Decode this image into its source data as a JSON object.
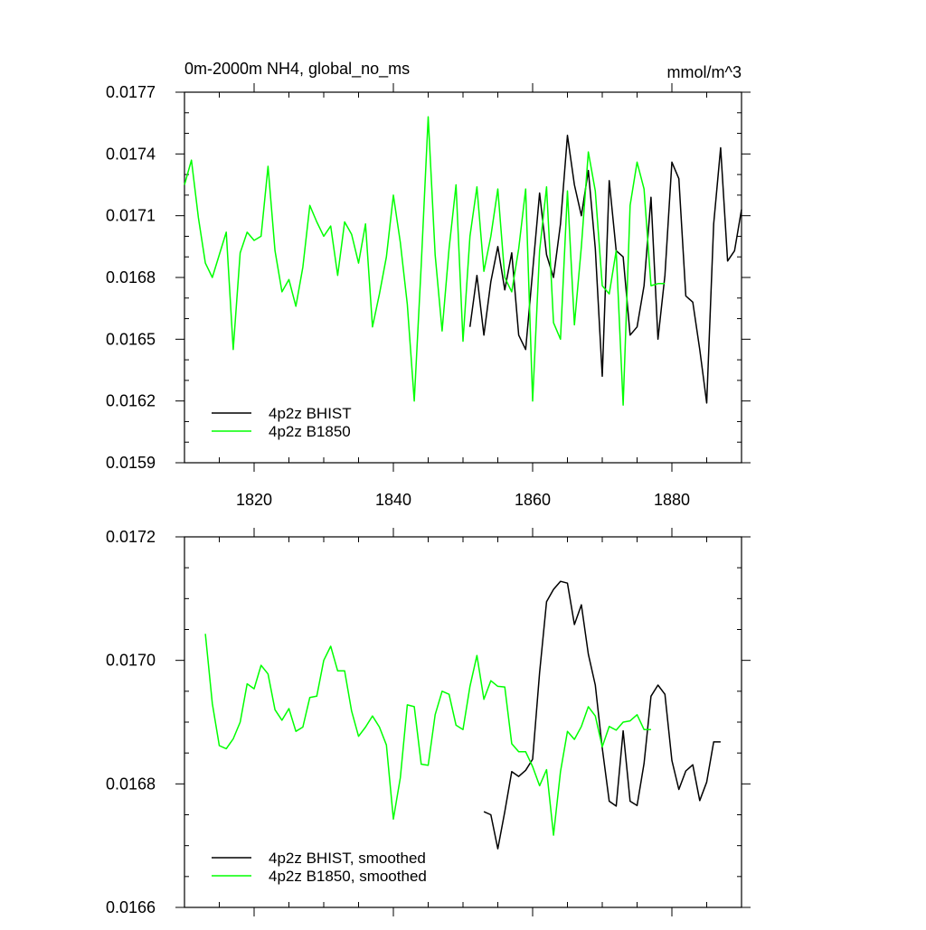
{
  "chart_data": [
    {
      "type": "line",
      "title": "0m-2000m NH4, global_no_ms",
      "units": "mmol/m^3",
      "xlim": [
        1810,
        1890
      ],
      "ylim": [
        0.0159,
        0.0177
      ],
      "xticks": [
        1820,
        1840,
        1860,
        1880
      ],
      "yticks": [
        0.0159,
        0.0162,
        0.0165,
        0.0168,
        0.0171,
        0.0174,
        0.0177
      ],
      "ytick_labels": [
        "0.0159",
        "0.0162",
        "0.0165",
        "0.0168",
        "0.0171",
        "0.0174",
        "0.0177"
      ],
      "legend": "bottom-left",
      "series": [
        {
          "name": "4p2z BHIST",
          "color": "#000000",
          "x": [
            1851,
            1852,
            1853,
            1854,
            1855,
            1856,
            1857,
            1858,
            1859,
            1860,
            1861,
            1862,
            1863,
            1864,
            1865,
            1866,
            1867,
            1868,
            1869,
            1870,
            1871,
            1872,
            1873,
            1874,
            1875,
            1876,
            1877,
            1878,
            1879,
            1880,
            1881,
            1882,
            1883,
            1884,
            1885,
            1886,
            1887,
            1888,
            1889,
            1890
          ],
          "y": [
            0.01656,
            0.01681,
            0.01652,
            0.01678,
            0.01695,
            0.01674,
            0.01692,
            0.01652,
            0.01645,
            0.01683,
            0.01721,
            0.01691,
            0.0168,
            0.01706,
            0.01749,
            0.01725,
            0.0171,
            0.01732,
            0.01694,
            0.01632,
            0.01727,
            0.01693,
            0.0169,
            0.01652,
            0.01656,
            0.01676,
            0.01719,
            0.0165,
            0.01681,
            0.01736,
            0.01728,
            0.01671,
            0.01668,
            0.01645,
            0.01619,
            0.01706,
            0.01743,
            0.01688,
            0.01693,
            0.01713
          ]
        },
        {
          "name": "4p2z B1850",
          "color": "#00ff00",
          "x": [
            1810,
            1811,
            1812,
            1813,
            1814,
            1815,
            1816,
            1817,
            1818,
            1819,
            1820,
            1821,
            1822,
            1823,
            1824,
            1825,
            1826,
            1827,
            1828,
            1829,
            1830,
            1831,
            1832,
            1833,
            1834,
            1835,
            1836,
            1837,
            1838,
            1839,
            1840,
            1841,
            1842,
            1843,
            1844,
            1845,
            1846,
            1847,
            1848,
            1849,
            1850,
            1851,
            1852,
            1853,
            1854,
            1855,
            1856,
            1857,
            1858,
            1859,
            1860,
            1861,
            1862,
            1863,
            1864,
            1865,
            1866,
            1867,
            1868,
            1869,
            1870,
            1871,
            1872,
            1873,
            1874,
            1875,
            1876,
            1877,
            1878,
            1879
          ],
          "y": [
            0.01725,
            0.01737,
            0.01709,
            0.01687,
            0.0168,
            0.01691,
            0.01702,
            0.01645,
            0.01692,
            0.01702,
            0.01698,
            0.017,
            0.01734,
            0.01693,
            0.01673,
            0.01679,
            0.01666,
            0.01685,
            0.01715,
            0.01707,
            0.017,
            0.01705,
            0.01681,
            0.01707,
            0.01701,
            0.01687,
            0.01706,
            0.01656,
            0.01672,
            0.0169,
            0.0172,
            0.01697,
            0.01667,
            0.0162,
            0.01686,
            0.01758,
            0.01691,
            0.01654,
            0.01694,
            0.01725,
            0.01649,
            0.017,
            0.01724,
            0.01683,
            0.017,
            0.01723,
            0.0168,
            0.01673,
            0.01694,
            0.01723,
            0.0162,
            0.01693,
            0.01724,
            0.01658,
            0.0165,
            0.01722,
            0.01657,
            0.01695,
            0.01741,
            0.01722,
            0.01676,
            0.01672,
            0.01693,
            0.01618,
            0.01715,
            0.01736,
            0.01723,
            0.01676,
            0.01677,
            0.01677
          ]
        }
      ]
    },
    {
      "type": "line",
      "xlim": [
        1810,
        1890
      ],
      "ylim": [
        0.0166,
        0.0172
      ],
      "xticks": [
        1820,
        1840,
        1860,
        1880
      ],
      "yticks": [
        0.0166,
        0.0168,
        0.017,
        0.0172
      ],
      "ytick_labels": [
        "0.0166",
        "0.0168",
        "0.0170",
        "0.0172"
      ],
      "legend": "bottom-left",
      "series": [
        {
          "name": "4p2z BHIST, smoothed",
          "color": "#000000",
          "x": [
            1853,
            1854,
            1855,
            1856,
            1857,
            1858,
            1859,
            1860,
            1861,
            1862,
            1863,
            1864,
            1865,
            1866,
            1867,
            1868,
            1869,
            1870,
            1871,
            1872,
            1873,
            1874,
            1875,
            1876,
            1877,
            1878,
            1879,
            1880,
            1881,
            1882,
            1883,
            1884,
            1885,
            1886,
            1887
          ],
          "y": [
            0.016755,
            0.01675,
            0.016695,
            0.016755,
            0.01682,
            0.016812,
            0.016822,
            0.01684,
            0.01698,
            0.017095,
            0.017115,
            0.017128,
            0.017125,
            0.017058,
            0.01709,
            0.01701,
            0.01696,
            0.016858,
            0.016772,
            0.016764,
            0.016886,
            0.016772,
            0.016765,
            0.016833,
            0.016942,
            0.01696,
            0.016945,
            0.016838,
            0.016791,
            0.016821,
            0.016831,
            0.016773,
            0.016803,
            0.016868,
            0.016868
          ]
        },
        {
          "name": "4p2z B1850, smoothed",
          "color": "#00ff00",
          "x": [
            1813,
            1814,
            1815,
            1816,
            1817,
            1818,
            1819,
            1820,
            1821,
            1822,
            1823,
            1824,
            1825,
            1826,
            1827,
            1828,
            1829,
            1830,
            1831,
            1832,
            1833,
            1834,
            1835,
            1836,
            1837,
            1838,
            1839,
            1840,
            1841,
            1842,
            1843,
            1844,
            1845,
            1846,
            1847,
            1848,
            1849,
            1850,
            1851,
            1852,
            1853,
            1854,
            1855,
            1856,
            1857,
            1858,
            1859,
            1860,
            1861,
            1862,
            1863,
            1864,
            1865,
            1866,
            1867,
            1868,
            1869,
            1870,
            1871,
            1872,
            1873,
            1874,
            1875,
            1876,
            1877
          ],
          "y": [
            0.017043,
            0.01693,
            0.016862,
            0.016857,
            0.016873,
            0.0169,
            0.016962,
            0.016954,
            0.016992,
            0.016978,
            0.01692,
            0.016903,
            0.016922,
            0.016885,
            0.016892,
            0.01694,
            0.016942,
            0.017,
            0.017023,
            0.016983,
            0.016983,
            0.016918,
            0.016877,
            0.016892,
            0.01691,
            0.016892,
            0.016863,
            0.016743,
            0.01681,
            0.016928,
            0.016925,
            0.016832,
            0.01683,
            0.016912,
            0.01695,
            0.016945,
            0.016895,
            0.016888,
            0.016958,
            0.017008,
            0.016937,
            0.016967,
            0.016958,
            0.016957,
            0.016865,
            0.016852,
            0.016852,
            0.016828,
            0.016797,
            0.016823,
            0.016717,
            0.01682,
            0.016885,
            0.016872,
            0.016893,
            0.016925,
            0.01691,
            0.01686,
            0.016893,
            0.016887,
            0.0169,
            0.016902,
            0.016912,
            0.016888,
            0.016888
          ]
        }
      ]
    }
  ]
}
